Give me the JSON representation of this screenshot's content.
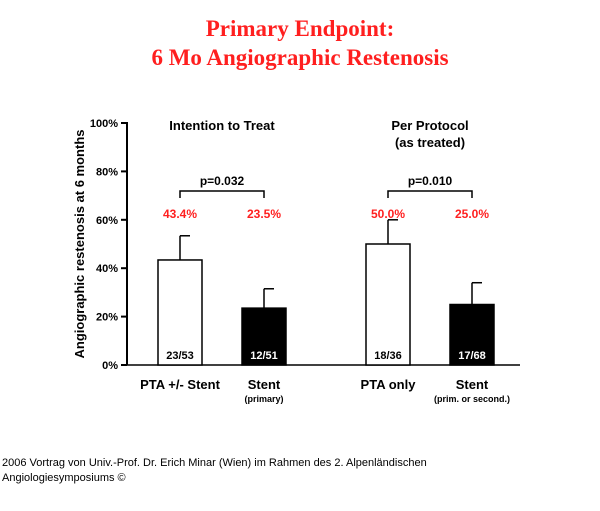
{
  "title": {
    "line1": "Primary Endpoint:",
    "line2": "6 Mo Angiographic Restenosis"
  },
  "colors": {
    "title": "#ff1f1f",
    "percent_labels": "#ff1f1f",
    "open_bar": "#ffffff",
    "filled_bar": "#000000"
  },
  "chart_data": {
    "type": "bar",
    "ylabel": "Angiographic restenosis at 6 months",
    "ylim": [
      0,
      100
    ],
    "ytick_labels": [
      "0%",
      "20%",
      "40%",
      "60%",
      "80%",
      "100%"
    ],
    "ytick_values": [
      0,
      20,
      40,
      60,
      80,
      100
    ],
    "groups": [
      {
        "title": "Intention to Treat",
        "title_line2": "",
        "p_value": "p=0.032",
        "bars": [
          {
            "category": "PTA +/- Stent",
            "sublabel": "",
            "value": 43.4,
            "error": 10,
            "label": "43.4%",
            "count": "23/53",
            "fill": "open"
          },
          {
            "category": "Stent",
            "sublabel": "(primary)",
            "value": 23.5,
            "error": 8,
            "label": "23.5%",
            "count": "12/51",
            "fill": "filled"
          }
        ]
      },
      {
        "title": "Per Protocol",
        "title_line2": "(as treated)",
        "p_value": "p=0.010",
        "bars": [
          {
            "category": "PTA only",
            "sublabel": "",
            "value": 50.0,
            "error": 10,
            "label": "50.0%",
            "count": "18/36",
            "fill": "open"
          },
          {
            "category": "Stent",
            "sublabel": "(prim. or second.)",
            "value": 25.0,
            "error": 9,
            "label": "25.0%",
            "count": "17/68",
            "fill": "filled"
          }
        ]
      }
    ]
  },
  "footer": {
    "line1": "2006 Vortrag von Univ.-Prof. Dr. Erich Minar (Wien) im Rahmen des 2. Alpenländischen",
    "line2": "Angiologiesymposiums ©"
  }
}
